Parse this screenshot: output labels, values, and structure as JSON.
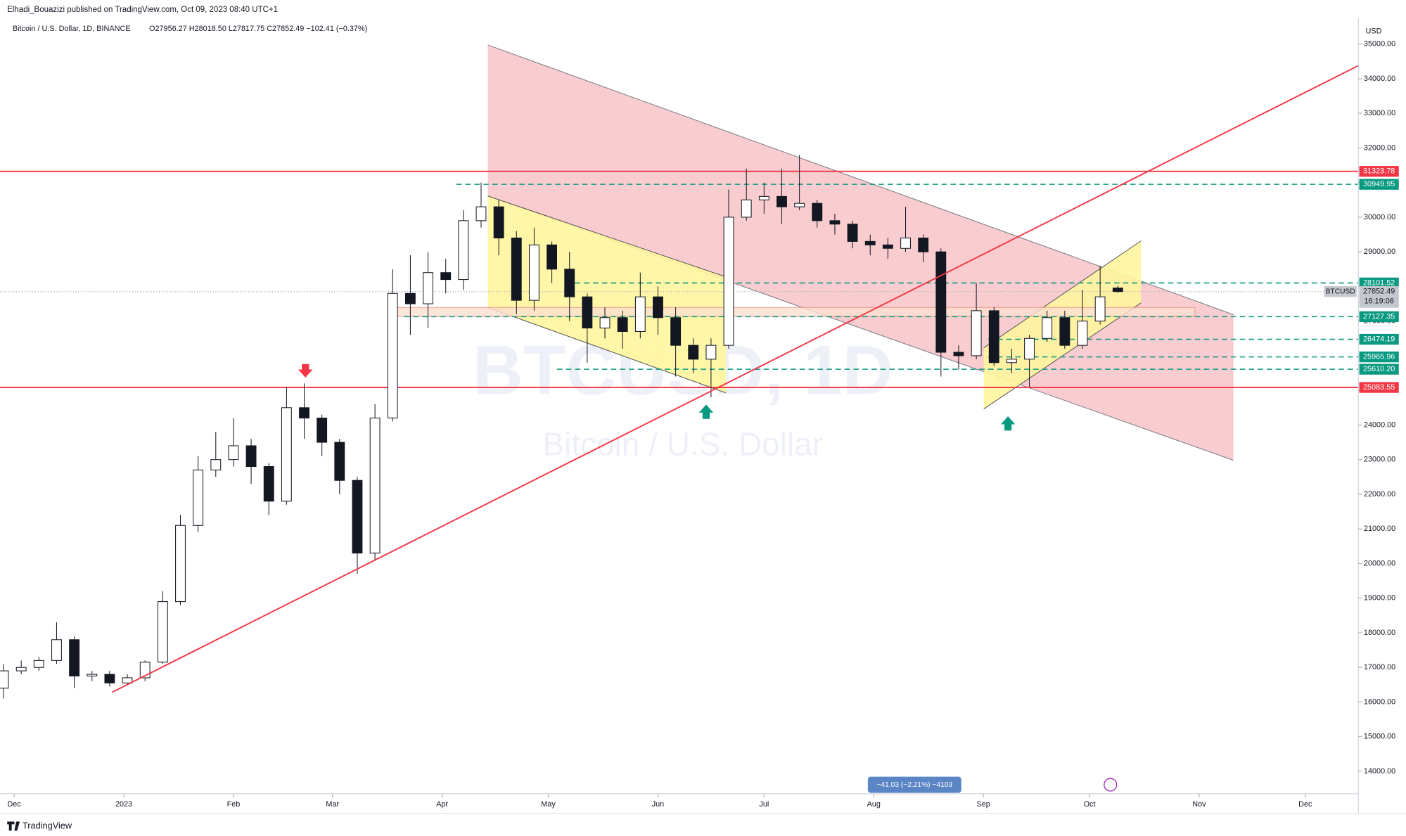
{
  "chart_data": {
    "type": "candlestick",
    "publisher": "Elhadi_Bouazizi published on TradingView.com, Oct 09, 2023 08:40 UTC+1",
    "title": "Bitcoin / U.S. Dollar, 1D, BINANCE",
    "ohlc_text": "O27956.27 H28018.50 L27817.75 C27852.49 −102.41 (−0.37%)",
    "watermark": "BTCUSD, 1D",
    "watermark_sub": "Bitcoin / U.S. Dollar",
    "currency": "USD",
    "symbol": "BTCUSD",
    "last_price": 27852.49,
    "countdown": "16:19:06",
    "measure": "−41.03 (−2.21%) −4103",
    "brand": "TradingView",
    "up_color": "#ffffff",
    "down_color": "#131722",
    "x": [
      "2022-11-28",
      "2022-12-03",
      "2022-12-08",
      "2022-12-13",
      "2022-12-18",
      "2022-12-23",
      "2022-12-28",
      "2023-01-02",
      "2023-01-07",
      "2023-01-12",
      "2023-01-17",
      "2023-01-22",
      "2023-01-27",
      "2023-02-01",
      "2023-02-06",
      "2023-02-11",
      "2023-02-16",
      "2023-02-21",
      "2023-02-26",
      "2023-03-03",
      "2023-03-08",
      "2023-03-13",
      "2023-03-18",
      "2023-03-23",
      "2023-03-28",
      "2023-04-02",
      "2023-04-07",
      "2023-04-12",
      "2023-04-17",
      "2023-04-22",
      "2023-04-27",
      "2023-05-02",
      "2023-05-07",
      "2023-05-12",
      "2023-05-17",
      "2023-05-22",
      "2023-05-27",
      "2023-06-01",
      "2023-06-06",
      "2023-06-11",
      "2023-06-16",
      "2023-06-21",
      "2023-06-26",
      "2023-07-01",
      "2023-07-06",
      "2023-07-11",
      "2023-07-16",
      "2023-07-21",
      "2023-07-26",
      "2023-07-31",
      "2023-08-05",
      "2023-08-10",
      "2023-08-15",
      "2023-08-20",
      "2023-08-25",
      "2023-08-30",
      "2023-09-04",
      "2023-09-09",
      "2023-09-14",
      "2023-09-19",
      "2023-09-24",
      "2023-09-29",
      "2023-10-04",
      "2023-10-09"
    ],
    "open": [
      16400,
      16900,
      17000,
      17200,
      17800,
      16750,
      16800,
      16550,
      16700,
      17150,
      18900,
      21100,
      22700,
      23000,
      23400,
      22800,
      21800,
      24500,
      24200,
      23500,
      22400,
      20300,
      24200,
      27800,
      27500,
      28400,
      28200,
      29900,
      30300,
      29400,
      27600,
      29200,
      28500,
      27700,
      26800,
      27100,
      26700,
      27700,
      27100,
      26300,
      25900,
      26300,
      30000,
      30500,
      30600,
      30300,
      30400,
      29900,
      29800,
      29300,
      29200,
      29100,
      29400,
      29000,
      26100,
      26000,
      27300,
      25800,
      25900,
      26500,
      27100,
      26300,
      27000,
      27956.27
    ],
    "high": [
      17100,
      17200,
      17300,
      18300,
      17900,
      16900,
      16900,
      16800,
      17200,
      19200,
      21400,
      23100,
      23800,
      24200,
      23600,
      22900,
      25100,
      25200,
      24300,
      23600,
      22500,
      24600,
      28500,
      28900,
      29000,
      28800,
      30200,
      31000,
      30500,
      29600,
      29700,
      29300,
      29000,
      27800,
      27400,
      27300,
      28400,
      28000,
      27400,
      26500,
      26500,
      30800,
      31400,
      31000,
      31400,
      31800,
      30500,
      30100,
      29900,
      29500,
      29400,
      30300,
      29500,
      29100,
      26300,
      28100,
      27400,
      26200,
      26600,
      27300,
      27300,
      27900,
      28600,
      28018.5
    ],
    "low": [
      16100,
      16800,
      16900,
      17100,
      16400,
      16600,
      16450,
      16500,
      16600,
      17100,
      18800,
      20900,
      22500,
      22800,
      22300,
      21400,
      21700,
      23600,
      23100,
      22000,
      19700,
      20100,
      24100,
      26600,
      26800,
      27800,
      27900,
      29700,
      28900,
      27200,
      27300,
      28100,
      27000,
      25800,
      26500,
      26200,
      26500,
      26600,
      25400,
      25500,
      24800,
      26200,
      29900,
      30100,
      29800,
      30200,
      29700,
      29500,
      29100,
      28900,
      28800,
      29000,
      28700,
      25400,
      25600,
      25900,
      25700,
      25500,
      25100,
      26400,
      26200,
      26200,
      26900,
      27817.75
    ],
    "close": [
      16900,
      17000,
      17200,
      17800,
      16750,
      16800,
      16550,
      16700,
      17150,
      18900,
      21100,
      22700,
      23000,
      23400,
      22800,
      21800,
      24500,
      24200,
      23500,
      22400,
      20300,
      24200,
      27800,
      27500,
      28400,
      28200,
      29900,
      30300,
      29400,
      27600,
      29200,
      28500,
      27700,
      26800,
      27100,
      26700,
      27700,
      27100,
      26300,
      25900,
      26300,
      30000,
      30500,
      30600,
      30300,
      30400,
      29900,
      29800,
      29300,
      29200,
      29100,
      29400,
      29000,
      26100,
      26000,
      27300,
      25800,
      25900,
      26500,
      27100,
      26300,
      27000,
      27700,
      27852.49
    ],
    "xlim": [
      "2022-11-27",
      "2023-12-16"
    ],
    "xticks": [
      {
        "value": "2022-12-01",
        "label": "Dec"
      },
      {
        "value": "2023-01-01",
        "label": "2023"
      },
      {
        "value": "2023-02-01",
        "label": "Feb"
      },
      {
        "value": "2023-03-01",
        "label": "Mar"
      },
      {
        "value": "2023-04-01",
        "label": "Apr"
      },
      {
        "value": "2023-05-01",
        "label": "May"
      },
      {
        "value": "2023-06-01",
        "label": "Jun"
      },
      {
        "value": "2023-07-01",
        "label": "Jul"
      },
      {
        "value": "2023-08-01",
        "label": "Aug"
      },
      {
        "value": "2023-09-01",
        "label": "Sep"
      },
      {
        "value": "2023-10-01",
        "label": "Oct"
      },
      {
        "value": "2023-11-01",
        "label": "Nov"
      },
      {
        "value": "2023-12-01",
        "label": "Dec"
      }
    ],
    "ylim": [
      13351,
      35753
    ],
    "yticks": [
      {
        "value": 14000,
        "label": "14000.00"
      },
      {
        "value": 15000,
        "label": "15000.00"
      },
      {
        "value": 16000,
        "label": "16000.00"
      },
      {
        "value": 17000,
        "label": "17000.00"
      },
      {
        "value": 18000,
        "label": "18000.00"
      },
      {
        "value": 19000,
        "label": "19000.00"
      },
      {
        "value": 20000,
        "label": "20000.00"
      },
      {
        "value": 21000,
        "label": "21000.00"
      },
      {
        "value": 22000,
        "label": "22000.00"
      },
      {
        "value": 23000,
        "label": "23000.00"
      },
      {
        "value": 24000,
        "label": "24000.00"
      },
      {
        "value": 25000,
        "label": "25000.00"
      },
      {
        "value": 26000,
        "label": "26000.00"
      },
      {
        "value": 27000,
        "label": "27000.00"
      },
      {
        "value": 28000,
        "label": "28000.00"
      },
      {
        "value": 29000,
        "label": "29000.00"
      },
      {
        "value": 30000,
        "label": "30000.00"
      },
      {
        "value": 31000,
        "label": "31000.00"
      },
      {
        "value": 32000,
        "label": "32000.00"
      },
      {
        "value": 33000,
        "label": "33000.00"
      },
      {
        "value": 34000,
        "label": "34000.00"
      },
      {
        "value": 35000,
        "label": "35000.00"
      }
    ],
    "levels": [
      {
        "value": 31323.78,
        "label": "31323.78",
        "color": "#f23645",
        "dashed": false
      },
      {
        "value": 30949.95,
        "label": "30949.95",
        "color": "#089981",
        "dashed": true
      },
      {
        "value": 28101.52,
        "label": "28101.52",
        "color": "#089981",
        "dashed": true
      },
      {
        "value": 27127.35,
        "label": "27127.35",
        "color": "#089981",
        "dashed": true
      },
      {
        "value": 26474.19,
        "label": "26474.19",
        "color": "#089981",
        "dashed": true
      },
      {
        "value": 25965.96,
        "label": "25965.96",
        "color": "#089981",
        "dashed": true
      },
      {
        "value": 25610.2,
        "label": "25610.20",
        "color": "#089981",
        "dashed": true
      },
      {
        "value": 25083.55,
        "label": "25083.55",
        "color": "#f23645",
        "dashed": false
      }
    ]
  }
}
